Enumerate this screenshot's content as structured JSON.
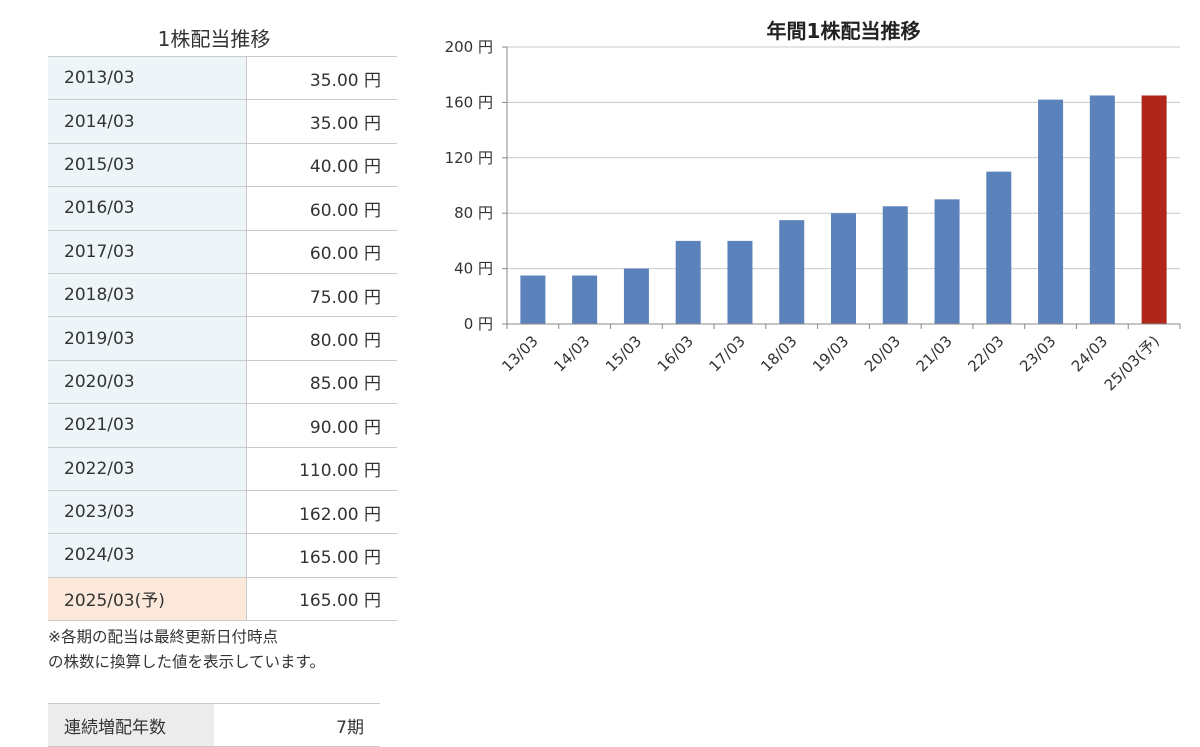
{
  "table": {
    "title": "1株配当推移",
    "rows": [
      {
        "period": "2013/03",
        "amount": "35.00 円"
      },
      {
        "period": "2014/03",
        "amount": "35.00 円"
      },
      {
        "period": "2015/03",
        "amount": "40.00 円"
      },
      {
        "period": "2016/03",
        "amount": "60.00 円"
      },
      {
        "period": "2017/03",
        "amount": "60.00 円"
      },
      {
        "period": "2018/03",
        "amount": "75.00 円"
      },
      {
        "period": "2019/03",
        "amount": "80.00 円"
      },
      {
        "period": "2020/03",
        "amount": "85.00 円"
      },
      {
        "period": "2021/03",
        "amount": "90.00 円"
      },
      {
        "period": "2022/03",
        "amount": "110.00 円"
      },
      {
        "period": "2023/03",
        "amount": "162.00 円"
      },
      {
        "period": "2024/03",
        "amount": "165.00 円"
      },
      {
        "period": "2025/03(予)",
        "amount": "165.00 円"
      }
    ],
    "note_line1": "※各期の配当は最終更新日付時点",
    "note_line2": "の株数に換算した値を表示しています。",
    "streak_label": "連続増配年数",
    "streak_value": "7期"
  },
  "chart_data": {
    "type": "bar",
    "title": "年間1株配当推移",
    "categories": [
      "13/03",
      "14/03",
      "15/03",
      "16/03",
      "17/03",
      "18/03",
      "19/03",
      "20/03",
      "21/03",
      "22/03",
      "23/03",
      "24/03",
      "25/03(予)"
    ],
    "values": [
      35,
      35,
      40,
      60,
      60,
      75,
      80,
      85,
      90,
      110,
      162,
      165,
      165
    ],
    "forecast_index": 12,
    "ylim": [
      0,
      200
    ],
    "yticks": [
      0,
      40,
      80,
      120,
      160,
      200
    ],
    "ytick_suffix": " 円",
    "grid": true,
    "colors": {
      "actual": "#5b82bb",
      "forecast": "#b02619",
      "grid": "#c8c8c8",
      "axis": "#888888"
    }
  }
}
